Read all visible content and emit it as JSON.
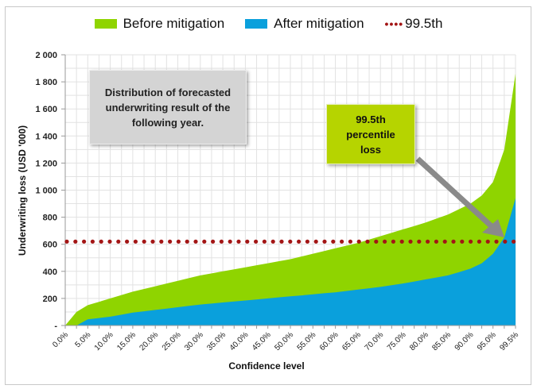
{
  "chart_data": {
    "type": "area",
    "xlabel": "Confidence level",
    "ylabel": "Underwriting loss (USD '000)",
    "ylim": [
      0,
      2000
    ],
    "xlim": [
      0,
      100
    ],
    "yticks": [
      "-",
      "200",
      "400",
      "600",
      "800",
      "1 000",
      "1 200",
      "1 400",
      "1 600",
      "1 800",
      "2 000"
    ],
    "ytick_values": [
      0,
      200,
      400,
      600,
      800,
      1000,
      1200,
      1400,
      1600,
      1800,
      2000
    ],
    "xticks": [
      "0.0%",
      "5.0%",
      "10.0%",
      "15.0%",
      "20.0%",
      "25.0%",
      "30.0%",
      "35.0%",
      "40.0%",
      "45.0%",
      "50.0%",
      "55.0%",
      "60.0%",
      "65.0%",
      "70.0%",
      "75.0%",
      "80.0%",
      "85.0%",
      "90.0%",
      "95.0%",
      "99.5%"
    ],
    "grid": true,
    "legend_position": "top",
    "x": [
      0,
      2.5,
      5,
      7.5,
      10,
      12.5,
      15,
      17.5,
      20,
      22.5,
      25,
      27.5,
      30,
      32.5,
      35,
      37.5,
      40,
      42.5,
      45,
      47.5,
      50,
      52.5,
      55,
      57.5,
      60,
      62.5,
      65,
      67.5,
      70,
      72.5,
      75,
      77.5,
      80,
      82.5,
      85,
      87.5,
      90,
      92.5,
      95,
      97.5,
      100
    ],
    "series": [
      {
        "name": "Before mitigation",
        "color": "#8fd400",
        "values": [
          0,
          100,
          150,
          175,
          200,
          225,
          250,
          270,
          290,
          310,
          330,
          350,
          370,
          385,
          400,
          415,
          430,
          445,
          460,
          475,
          490,
          510,
          530,
          550,
          570,
          590,
          610,
          635,
          660,
          685,
          710,
          735,
          760,
          790,
          820,
          860,
          900,
          960,
          1060,
          1300,
          1860
        ]
      },
      {
        "name": "After mitigation",
        "color": "#0aa0dc",
        "values": [
          0,
          0,
          45,
          55,
          65,
          80,
          95,
          105,
          115,
          125,
          135,
          145,
          155,
          162,
          170,
          178,
          185,
          192,
          200,
          208,
          215,
          222,
          230,
          238,
          245,
          255,
          265,
          275,
          285,
          298,
          310,
          325,
          340,
          355,
          370,
          395,
          420,
          460,
          530,
          650,
          940
        ]
      }
    ],
    "reference_line": {
      "name": "99.5th",
      "value": 620,
      "color": "#a31515"
    },
    "annotations": [
      "Distribution of forecasted underwriting result of the following year.",
      "99.5th percentile loss"
    ]
  },
  "legend": {
    "dots": "••••"
  }
}
